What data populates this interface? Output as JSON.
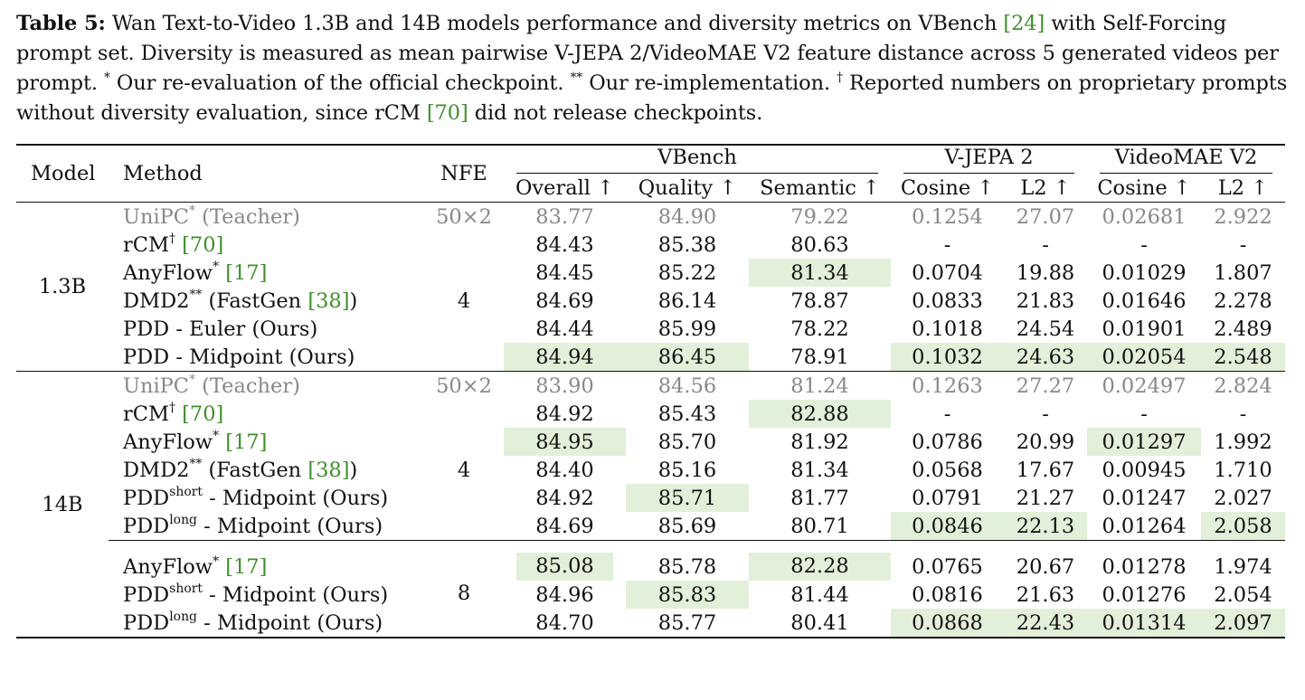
{
  "caption": {
    "label": "Table 5:",
    "seg1": " Wan Text-to-Video 1.3B and 14B models performance and diversity metrics on VBench ",
    "ref1": "[24]",
    "seg2": " with Self-Forcing prompt set. Diversity is measured as mean pairwise V-JEPA 2/VideoMAE V2 feature distance across 5 generated videos per prompt. ",
    "mark1": "*",
    "seg3": " Our re-evaluation of the official checkpoint. ",
    "mark2": "**",
    "seg4": " Our re-implementation. ",
    "mark3": "†",
    "seg5": " Reported numbers on proprietary prompts without diversity evaluation, since rCM ",
    "ref2": "[70]",
    "seg6": " did not release checkpoints."
  },
  "header": {
    "model": "Model",
    "method": "Method",
    "nfe": "NFE",
    "vbench": "VBench",
    "vjepa": "V-JEPA 2",
    "videomae": "VideoMAE V2",
    "overall": "Overall ↑",
    "quality": "Quality ↑",
    "semantic": "Semantic ↑",
    "cosine1": "Cosine ↑",
    "l2_1": "L2 ↑",
    "cosine2": "Cosine ↑",
    "l2_2": "L2 ↑"
  },
  "groups": {
    "g1": {
      "model": "1.3B",
      "nfe_teacher": "50×2",
      "nfe": "4"
    },
    "g2": {
      "model": "14B",
      "nfe_teacher": "50×2",
      "nfe": "4"
    },
    "g3": {
      "nfe": "8"
    }
  },
  "rows": {
    "r1": {
      "name": "UniPC",
      "sup": "*",
      "suffix": " (Teacher)",
      "values": [
        "83.77",
        "84.90",
        "79.22",
        "0.1254",
        "27.07",
        "0.02681",
        "2.922"
      ]
    },
    "r2": {
      "name": "rCM",
      "sup": "†",
      "ref": "[70]",
      "values": [
        "84.43",
        "85.38",
        "80.63",
        "-",
        "-",
        "-",
        "-"
      ]
    },
    "r3": {
      "name": "AnyFlow",
      "sup": "*",
      "ref": "[17]",
      "values": [
        "84.45",
        "85.22",
        "81.34",
        "0.0704",
        "19.88",
        "0.01029",
        "1.807"
      ]
    },
    "r4": {
      "name": "DMD2",
      "sup": "**",
      "pre": " (FastGen ",
      "ref": "[38]",
      "post": ")",
      "values": [
        "84.69",
        "86.14",
        "78.87",
        "0.0833",
        "21.83",
        "0.01646",
        "2.278"
      ]
    },
    "r5": {
      "name": "PDD - Euler (Ours)",
      "values": [
        "84.44",
        "85.99",
        "78.22",
        "0.1018",
        "24.54",
        "0.01901",
        "2.489"
      ]
    },
    "r6": {
      "name": "PDD - Midpoint (Ours)",
      "values": [
        "84.94",
        "86.45",
        "78.91",
        "0.1032",
        "24.63",
        "0.02054",
        "2.548"
      ]
    },
    "r7": {
      "name": "UniPC",
      "sup": "*",
      "suffix": " (Teacher)",
      "values": [
        "83.90",
        "84.56",
        "81.24",
        "0.1263",
        "27.27",
        "0.02497",
        "2.824"
      ]
    },
    "r8": {
      "name": "rCM",
      "sup": "†",
      "ref": "[70]",
      "values": [
        "84.92",
        "85.43",
        "82.88",
        "-",
        "-",
        "-",
        "-"
      ]
    },
    "r9": {
      "name": "AnyFlow",
      "sup": "*",
      "ref": "[17]",
      "values": [
        "84.95",
        "85.70",
        "81.92",
        "0.0786",
        "20.99",
        "0.01297",
        "1.992"
      ]
    },
    "r10": {
      "name": "DMD2",
      "sup": "**",
      "pre": " (FastGen ",
      "ref": "[38]",
      "post": ")",
      "values": [
        "84.40",
        "85.16",
        "81.34",
        "0.0568",
        "17.67",
        "0.00945",
        "1.710"
      ]
    },
    "r11": {
      "name": "PDD",
      "sup": "short",
      "suffix": " - Midpoint (Ours)",
      "values": [
        "84.92",
        "85.71",
        "81.77",
        "0.0791",
        "21.27",
        "0.01247",
        "2.027"
      ]
    },
    "r12": {
      "name": "PDD",
      "sup": "long",
      "suffix": " - Midpoint (Ours)",
      "values": [
        "84.69",
        "85.69",
        "80.71",
        "0.0846",
        "22.13",
        "0.01264",
        "2.058"
      ]
    },
    "r13": {
      "name": "AnyFlow",
      "sup": "*",
      "ref": "[17]",
      "values": [
        "85.08",
        "85.78",
        "82.28",
        "0.0765",
        "20.67",
        "0.01278",
        "1.974"
      ]
    },
    "r14": {
      "name": "PDD",
      "sup": "short",
      "suffix": " - Midpoint (Ours)",
      "values": [
        "84.96",
        "85.83",
        "81.44",
        "0.0816",
        "21.63",
        "0.01276",
        "2.054"
      ]
    },
    "r15": {
      "name": "PDD",
      "sup": "long",
      "suffix": " - Midpoint (Ours)",
      "values": [
        "84.70",
        "85.77",
        "80.41",
        "0.0868",
        "22.43",
        "0.01314",
        "2.097"
      ]
    }
  },
  "highlight_color": "#e2f0d9"
}
